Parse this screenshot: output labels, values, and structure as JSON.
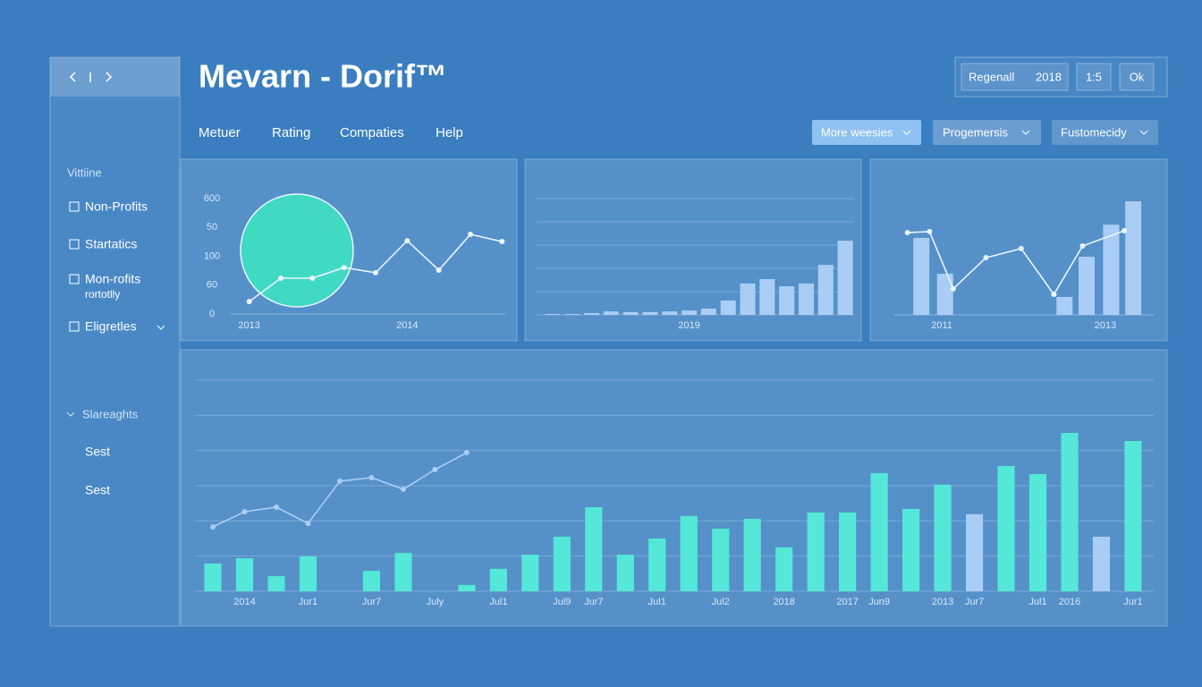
{
  "header": {
    "title": "Mevarn - Dorif™",
    "controls": [
      "Regenall",
      "2018",
      "1:5",
      "Ok"
    ]
  },
  "nav": [
    "Metuer",
    "Rating",
    "Compaties",
    "Help"
  ],
  "dropdowns": [
    "More weesies",
    "Progemersis",
    "Fustomecidy"
  ],
  "sidebar": {
    "section": "Vittiine",
    "items": [
      {
        "label": "Non-Profits"
      },
      {
        "label": "Startatics"
      },
      {
        "label": "Mon-rofits",
        "note": "rortotlly"
      },
      {
        "label": "Eligretles"
      }
    ],
    "section2": "Slareaghts",
    "links": [
      "Sest",
      "Sest"
    ]
  },
  "chart_data": [
    {
      "type": "line",
      "categories": [
        "2013",
        null,
        null,
        null,
        null,
        "2014",
        null,
        null,
        null
      ],
      "series": [
        {
          "color": "#eaf4ff",
          "values": [
            0.43,
            1.24,
            1.24,
            1.61,
            1.43,
            2.54,
            1.52,
            2.76,
            2.51
          ]
        }
      ],
      "ylim": [
        0,
        4
      ],
      "yticks": [
        0,
        {
          "value": 1,
          "label": "60"
        },
        {
          "value": 2,
          "label": "100"
        },
        {
          "value": 3,
          "label": "50"
        },
        {
          "value": 4,
          "label": "600"
        }
      ],
      "grid": false,
      "ytick_labels": true
    },
    {
      "type": "bar",
      "categories": [
        null,
        null,
        null,
        null,
        null,
        null,
        null,
        "2019",
        null,
        null,
        null,
        null,
        null,
        null,
        null,
        null
      ],
      "series": [
        {
          "color": "#a9cdf5",
          "values": [
            0.04,
            0.04,
            0.08,
            0.15,
            0.12,
            0.12,
            0.15,
            0.19,
            0.27,
            0.62,
            1.35,
            1.54,
            1.23,
            1.35,
            2.15,
            3.19
          ]
        }
      ],
      "ylim": [
        0,
        5
      ],
      "yticks": [
        0,
        1,
        2,
        3,
        4,
        5
      ],
      "grid": true,
      "ytick_labels": false
    },
    {
      "type": "combo",
      "xlim": [
        2010.42,
        2013.59
      ],
      "xticks": [
        2011,
        2013
      ],
      "series": [
        {
          "type": "bar",
          "color": "#a9cdf5",
          "x": [
            2010.75,
            2011.04,
            2012.5,
            2012.77,
            2013.07,
            2013.34
          ],
          "values": [
            3.31,
            1.77,
            0.77,
            2.5,
            3.88,
            4.88
          ]
        },
        {
          "type": "line",
          "color": "#eaf4ff",
          "x": [
            2010.58,
            2010.85,
            2011.14,
            2011.54,
            2011.97,
            2012.37,
            2012.72,
            2013.23
          ],
          "values": [
            3.54,
            3.58,
            1.12,
            2.46,
            2.85,
            0.88,
            2.96,
            3.62
          ]
        }
      ],
      "ylim": [
        0,
        5
      ],
      "grid": false
    },
    {
      "type": "combo",
      "categories": [
        null,
        "2014",
        null,
        "Jur1",
        null,
        "Jur7",
        null,
        "July",
        null,
        "Jul1",
        null,
        "Jul9",
        "Jur7",
        null,
        "Jul1",
        null,
        "Jul2",
        null,
        "2018",
        null,
        "2017",
        "Jun9",
        null,
        "2013",
        "Jur7",
        null,
        "Jul1",
        "2016",
        null,
        "Jur1"
      ],
      "series": [
        {
          "type": "bar",
          "color": "#55e8d8",
          "values": [
            0.79,
            0.94,
            0.43,
            0.99,
            null,
            0.58,
            1.09,
            null,
            0.18,
            0.64,
            1.04,
            1.55,
            2.39,
            1.04,
            1.5,
            2.14,
            1.78,
            2.06,
            1.25,
            2.24,
            2.24,
            3.36,
            2.34,
            3.03,
            null,
            3.56,
            3.33,
            4.5,
            null,
            4.27
          ]
        },
        {
          "type": "bar",
          "color": "#a9cdf5",
          "values": [
            null,
            null,
            null,
            null,
            null,
            null,
            null,
            null,
            null,
            null,
            null,
            null,
            null,
            null,
            null,
            null,
            null,
            null,
            null,
            null,
            null,
            null,
            null,
            null,
            2.19,
            null,
            null,
            null,
            1.55,
            null
          ]
        },
        {
          "type": "line",
          "color": "#a9cdf5",
          "values": [
            1.83,
            2.26,
            2.39,
            1.93,
            3.13,
            3.23,
            2.9,
            3.46,
            3.94,
            null,
            null,
            null,
            null,
            null,
            null,
            null,
            null,
            null,
            null,
            null,
            null,
            null,
            null,
            null,
            null,
            null,
            null,
            null,
            null,
            null
          ]
        }
      ],
      "ylim": [
        0,
        6
      ],
      "yticks": [
        0,
        1,
        2,
        3,
        4,
        5,
        6
      ],
      "grid": true,
      "ytick_labels": false
    }
  ]
}
